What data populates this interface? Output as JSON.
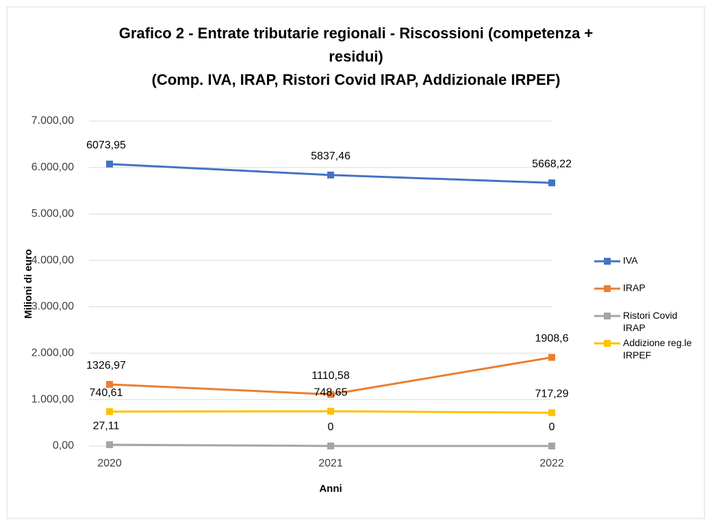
{
  "chart_data": {
    "type": "line",
    "title": [
      "Grafico 2 - Entrate tributarie regionali - Riscossioni (competenza +",
      "residui)",
      "(Comp. IVA, IRAP, Ristori Covid IRAP, Addizionale IRPEF)"
    ],
    "x_label": "Anni",
    "y_label": "Milioni di euro",
    "categories": [
      "2020",
      "2021",
      "2022"
    ],
    "series": [
      {
        "name": "IVA",
        "color": "#4472c4",
        "values": [
          6073.95,
          5837.46,
          5668.22
        ],
        "value_labels": [
          "6073,95",
          "5837,46",
          "5668,22"
        ]
      },
      {
        "name": "IRAP",
        "color": "#ed7d31",
        "values": [
          1326.97,
          1110.58,
          1908.6
        ],
        "value_labels": [
          "1326,97",
          "1110,58",
          "1908,6"
        ]
      },
      {
        "name": "Ristori Covid IRAP",
        "color": "#a5a5a5",
        "values": [
          27.11,
          0,
          0
        ],
        "value_labels": [
          "27,11",
          "0",
          "0"
        ]
      },
      {
        "name": "Addizione reg.le IRPEF",
        "color": "#ffc000",
        "values": [
          740.61,
          748.65,
          717.29
        ],
        "value_labels": [
          "740,61",
          "748,65",
          "717,29"
        ]
      }
    ],
    "ylim": [
      0,
      7000
    ],
    "yticks": [
      {
        "value": 0,
        "label": "0,00"
      },
      {
        "value": 1000,
        "label": "1.000,00"
      },
      {
        "value": 2000,
        "label": "2.000,00"
      },
      {
        "value": 3000,
        "label": "3.000,00"
      },
      {
        "value": 4000,
        "label": "4.000,00"
      },
      {
        "value": 5000,
        "label": "5.000,00"
      },
      {
        "value": 6000,
        "label": "6.000,00"
      },
      {
        "value": 7000,
        "label": "7.000,00"
      }
    ],
    "grid": true,
    "legend": "right"
  }
}
